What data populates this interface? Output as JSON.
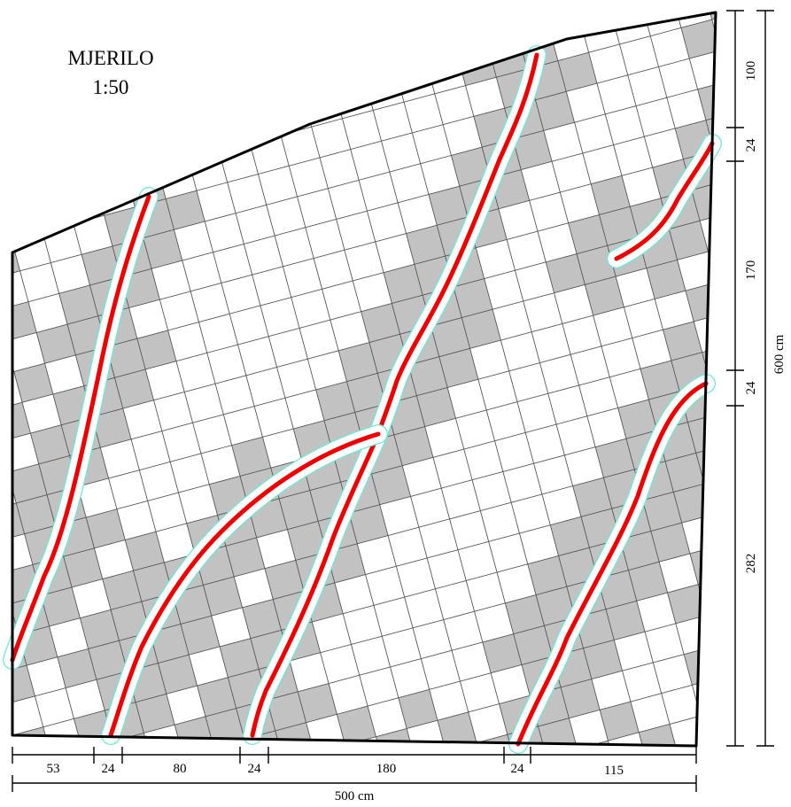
{
  "scale": {
    "title": "MJERILO",
    "ratio": "1:50"
  },
  "bottom_dimensions": {
    "segments": [
      "53",
      "24",
      "80",
      "24",
      "180",
      "24",
      "115"
    ],
    "total": "500 cm"
  },
  "right_dimensions": {
    "segments": [
      "100",
      "24",
      "170",
      "24",
      "282"
    ],
    "total": "600 cm"
  },
  "colors": {
    "tile_light": "#ffffff",
    "tile_dark": "#c2c2c2",
    "heating_pipe": "#ee0000",
    "pipe_outline": "#6ee8d8",
    "outline": "#000000"
  }
}
